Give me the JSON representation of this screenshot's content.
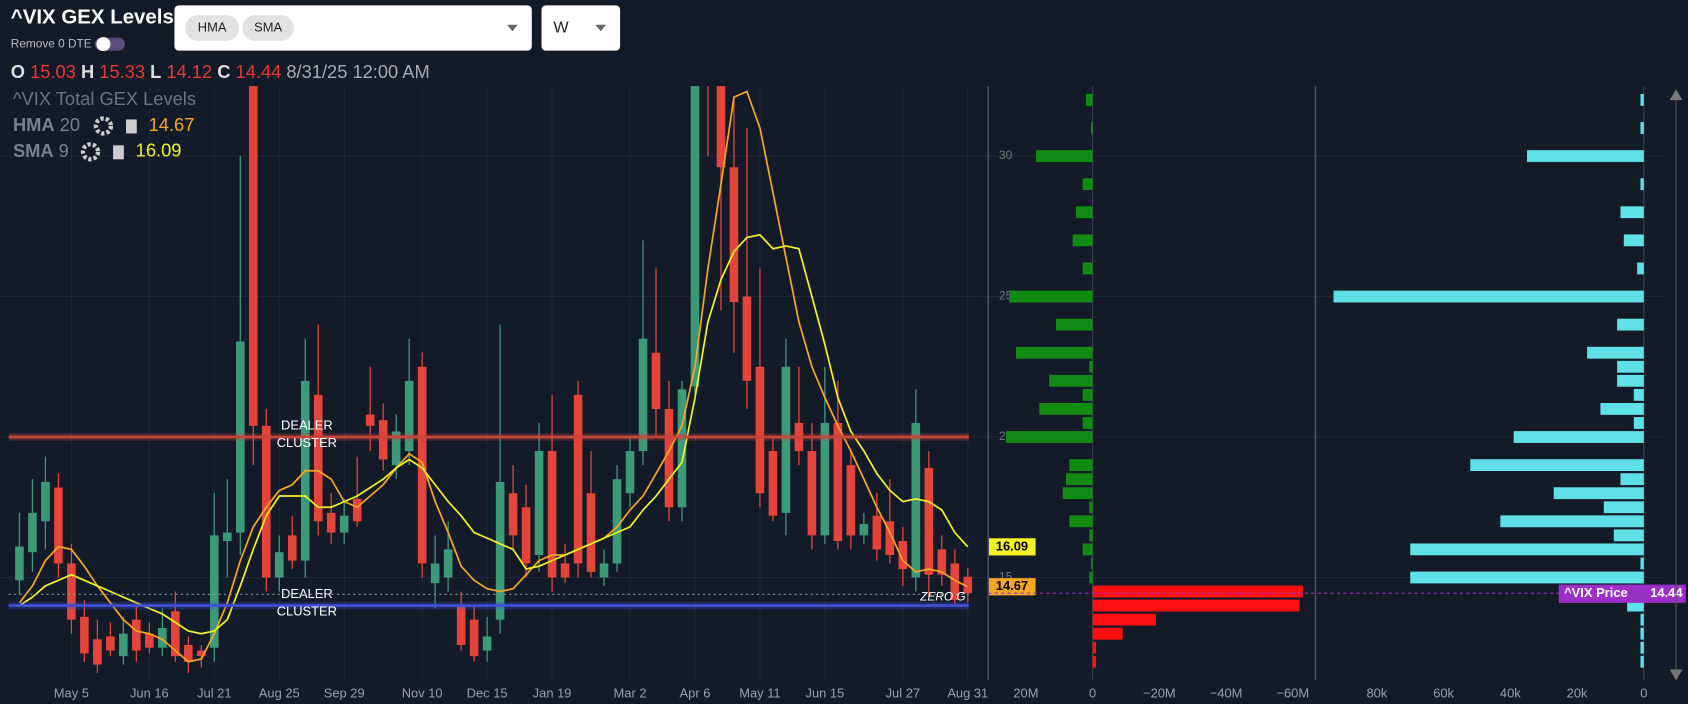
{
  "header": {
    "title": "^VIX GEX Levels",
    "toggle_label": "Remove 0 DTE",
    "indicators": [
      "HMA",
      "SMA"
    ],
    "interval": "W"
  },
  "ohlc": {
    "labels": [
      "O",
      "H",
      "L",
      "C"
    ],
    "datetime": "8/31/25 12:00 AM"
  },
  "legend": {
    "title": "^VIX Total GEX Levels"
  },
  "chart_data": [
    {
      "type": "candlestick",
      "up_color": "#3d9a78",
      "down_color": "#e5443b",
      "grid": true,
      "categories": [
        null,
        null,
        null,
        null,
        "May 5",
        null,
        null,
        null,
        null,
        null,
        "Jun 16",
        null,
        null,
        null,
        null,
        "Jul 21",
        null,
        null,
        null,
        null,
        "Aug 25",
        null,
        null,
        null,
        null,
        "Sep 29",
        null,
        null,
        null,
        null,
        null,
        "Nov 10",
        null,
        null,
        null,
        null,
        "Dec 15",
        null,
        null,
        null,
        null,
        "Jan 19",
        null,
        null,
        null,
        null,
        null,
        "Mar 2",
        null,
        null,
        null,
        null,
        "Apr 6",
        null,
        null,
        null,
        null,
        "May 11",
        null,
        null,
        null,
        null,
        "Jun 15",
        null,
        null,
        null,
        null,
        null,
        "Jul 27",
        null,
        null,
        null,
        null,
        "Aug 31"
      ],
      "open": [
        14.9,
        15.9,
        17.0,
        18.2,
        15.5,
        13.6,
        12.8,
        12.9,
        12.2,
        13.5,
        13.0,
        12.5,
        13.8,
        12.6,
        12.4,
        12.5,
        16.3,
        16.6,
        35.0,
        20.4,
        15.0,
        16.5,
        15.6,
        21.5,
        17.3,
        16.6,
        17.8,
        20.8,
        20.6,
        19.0,
        19.5,
        22.5,
        14.8,
        15.0,
        14.0,
        13.5,
        12.4,
        13.5,
        18.0,
        17.5,
        15.8,
        19.5,
        15.5,
        21.5,
        18.0,
        15.0,
        15.5,
        18.0,
        19.5,
        23.0,
        21.0,
        17.5,
        21.8,
        45.0,
        37.0,
        29.6,
        25.0,
        22.5,
        19.5,
        17.3,
        20.5,
        19.5,
        16.5,
        20.5,
        19.0,
        16.5,
        17.2,
        17.0,
        16.3,
        15.0,
        18.9,
        16.0,
        15.5,
        15.03
      ],
      "high": [
        17.3,
        18.5,
        19.3,
        18.7,
        16.2,
        14.2,
        13.5,
        13.4,
        13.6,
        14.0,
        13.4,
        13.9,
        14.5,
        12.9,
        12.6,
        18.0,
        18.5,
        30.0,
        65.7,
        21.0,
        16.5,
        17.2,
        23.5,
        24.0,
        18.0,
        17.8,
        19.3,
        22.5,
        21.2,
        20.8,
        23.5,
        23.0,
        16.5,
        17.0,
        14.5,
        14.0,
        13.6,
        24.0,
        19.0,
        18.3,
        20.5,
        21.5,
        16.2,
        22.0,
        19.5,
        16.0,
        19.0,
        20.0,
        27.0,
        26.0,
        22.0,
        22.0,
        60.1,
        55.0,
        38.0,
        32.0,
        31.0,
        26.0,
        20.0,
        23.5,
        22.5,
        20.5,
        22.5,
        22.0,
        19.5,
        17.3,
        18.0,
        18.5,
        16.8,
        21.7,
        19.5,
        16.5,
        16.0,
        15.33
      ],
      "low": [
        14.4,
        15.2,
        16.0,
        15.0,
        13.0,
        12.0,
        11.6,
        12.2,
        11.9,
        12.0,
        12.3,
        12.2,
        12.0,
        11.6,
        11.8,
        12.0,
        15.0,
        15.8,
        19.0,
        14.5,
        14.5,
        15.3,
        15.0,
        16.5,
        16.2,
        16.2,
        16.8,
        19.5,
        18.8,
        18.5,
        19.0,
        15.0,
        13.9,
        14.5,
        12.4,
        12.0,
        12.0,
        13.0,
        16.0,
        15.0,
        15.2,
        14.5,
        14.8,
        15.0,
        15.0,
        14.7,
        15.2,
        17.5,
        19.0,
        20.0,
        17.0,
        17.0,
        21.5,
        30.0,
        24.5,
        23.0,
        21.0,
        17.5,
        17.0,
        16.5,
        19.0,
        16.0,
        16.2,
        16.0,
        16.0,
        16.2,
        15.6,
        15.5,
        14.7,
        14.5,
        14.3,
        14.7,
        14.0,
        14.12
      ],
      "close": [
        16.1,
        17.3,
        18.4,
        15.5,
        13.5,
        12.3,
        11.9,
        12.4,
        13.0,
        12.4,
        12.5,
        13.2,
        12.2,
        12.0,
        12.2,
        16.5,
        16.6,
        23.4,
        20.4,
        15.0,
        15.9,
        15.6,
        22.0,
        17.0,
        16.6,
        17.2,
        17.0,
        20.4,
        19.2,
        20.2,
        22.0,
        15.5,
        15.5,
        16.0,
        12.6,
        12.2,
        12.9,
        18.4,
        16.5,
        15.5,
        19.5,
        15.0,
        15.0,
        15.5,
        15.2,
        15.5,
        18.5,
        19.5,
        23.5,
        21.0,
        17.5,
        21.7,
        45.3,
        37.6,
        29.6,
        24.8,
        22.0,
        18.0,
        17.2,
        22.5,
        19.5,
        16.5,
        20.5,
        16.3,
        16.5,
        16.9,
        16.0,
        15.8,
        15.3,
        20.5,
        15.1,
        15.1,
        14.2,
        14.44
      ],
      "ylim": [
        11.34,
        32.49
      ],
      "yticks": [
        15,
        20,
        25,
        30
      ],
      "series": [
        {
          "name": "HMA",
          "period": 20,
          "color": "#f5a623",
          "values": [
            14.1,
            14.7,
            15.6,
            16.1,
            16.0,
            15.4,
            14.7,
            14.1,
            13.5,
            13.1,
            13.0,
            12.8,
            12.4,
            12.0,
            12.1,
            13.0,
            14.1,
            15.6,
            16.8,
            17.5,
            18.1,
            18.3,
            18.8,
            18.8,
            18.5,
            17.7,
            17.5,
            17.9,
            18.3,
            18.9,
            19.4,
            19.1,
            17.7,
            16.6,
            15.4,
            14.9,
            14.6,
            14.5,
            14.6,
            15.1,
            15.6,
            15.8,
            15.8,
            16.0,
            16.2,
            16.4,
            16.8,
            17.4,
            17.9,
            18.7,
            19.5,
            20.4,
            22.5,
            26.0,
            29.0,
            32.1,
            32.3,
            31.0,
            28.7,
            26.4,
            24.1,
            22.5,
            21.4,
            20.4,
            19.5,
            18.5,
            17.5,
            16.6,
            15.6,
            15.2,
            15.3,
            15.2,
            14.9,
            14.67
          ]
        },
        {
          "name": "SMA",
          "period": 9,
          "color": "#f2f226",
          "values": [
            14.0,
            14.3,
            14.7,
            14.9,
            15.1,
            14.9,
            14.7,
            14.5,
            14.3,
            14.1,
            13.9,
            13.7,
            13.4,
            13.1,
            13.0,
            13.1,
            13.5,
            14.7,
            16.0,
            17.2,
            17.9,
            17.9,
            17.9,
            17.5,
            17.5,
            17.7,
            17.9,
            18.2,
            18.5,
            18.9,
            19.2,
            18.9,
            18.3,
            17.7,
            17.2,
            16.6,
            16.4,
            16.2,
            16.0,
            15.3,
            15.4,
            15.6,
            15.8,
            16.0,
            16.2,
            16.4,
            16.6,
            16.8,
            17.4,
            17.9,
            18.5,
            19.1,
            21.4,
            24.1,
            25.6,
            26.6,
            27.1,
            27.2,
            26.7,
            26.8,
            26.7,
            25.0,
            23.3,
            21.4,
            20.2,
            19.5,
            18.7,
            18.1,
            17.7,
            17.8,
            17.7,
            17.4,
            16.6,
            16.09
          ]
        }
      ],
      "annotations": [
        {
          "lines": [
            "DEALER",
            "CLUSTER"
          ],
          "value": 20,
          "color": "#c8453a"
        },
        {
          "lines": [
            "DEALER",
            "CLUSTER"
          ],
          "value": 14,
          "color": "#3f4fd8"
        }
      ],
      "zero_gamma": {
        "label": "ZERO G",
        "value": 14.4
      },
      "price_label": {
        "text": "^VIX Price",
        "color": "#9b30c9"
      }
    },
    {
      "type": "barh",
      "positive_color": "#138a13",
      "negative_color": "#ff1010",
      "y": [
        32,
        31,
        30,
        29,
        28,
        27,
        26,
        25,
        24,
        23,
        22.5,
        22,
        21.5,
        21,
        20.5,
        20,
        19,
        18.5,
        18,
        17.5,
        17,
        16.5,
        16,
        15.5,
        15,
        14.5,
        14,
        13.5,
        13,
        12.5,
        12
      ],
      "values": [
        2,
        0.5,
        17,
        3,
        5,
        6,
        3,
        25,
        11,
        23,
        1,
        13,
        3,
        16,
        3,
        26,
        7,
        8,
        9,
        1,
        7,
        1,
        3,
        0.5,
        1,
        -63,
        -62,
        -19,
        -9,
        -1,
        -1
      ],
      "xlim": [
        31.3,
        -66.8
      ],
      "xticks": [
        {
          "value": 20,
          "label": "20M"
        },
        0,
        {
          "value": -20,
          "label": "−20M"
        },
        {
          "value": -40,
          "label": "−40M"
        },
        {
          "value": -60,
          "label": "−60M"
        }
      ]
    },
    {
      "type": "barh",
      "color": "#5fe0e6",
      "y": [
        32,
        31,
        30,
        29,
        28,
        27,
        26,
        25,
        24,
        23,
        22.5,
        22,
        21.5,
        21,
        20.5,
        20,
        19,
        18.5,
        18,
        17.5,
        17,
        16.5,
        16,
        15.5,
        15,
        14.5,
        14,
        13.5,
        13,
        12.5,
        12
      ],
      "values": [
        1,
        1,
        35,
        1,
        7,
        6,
        2,
        93,
        8,
        17,
        8,
        8,
        3,
        13,
        3,
        39,
        52,
        7,
        27,
        12,
        43,
        9,
        70,
        1,
        70,
        0,
        5,
        1,
        1,
        1,
        1
      ],
      "xlim": [
        98.4,
        -5.8
      ],
      "xticks": [
        {
          "value": 80,
          "label": "80k"
        },
        {
          "value": 60,
          "label": "60k"
        },
        {
          "value": 40,
          "label": "40k"
        },
        {
          "value": 20,
          "label": "20k"
        },
        0
      ]
    }
  ]
}
